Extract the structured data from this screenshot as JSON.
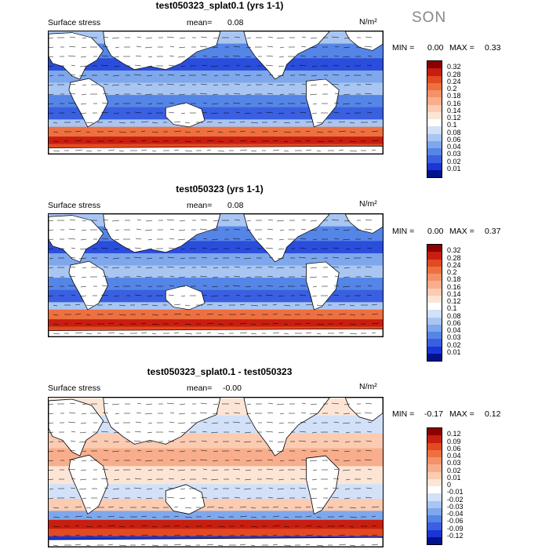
{
  "season": "SON",
  "panels": [
    {
      "title": "test050323_splat0.1 (yrs 1-1)",
      "field": "Surface stress",
      "mean_label": "mean=",
      "mean_value": "0.08",
      "units": "N/m²",
      "min_label": "MIN =",
      "min_value": "0.00",
      "max_label": "MAX =",
      "max_value": "0.33",
      "colorbar": {
        "levels": [
          "0.32",
          "0.28",
          "0.24",
          "0.2",
          "0.18",
          "0.16",
          "0.14",
          "0.12",
          "0.1",
          "0.08",
          "0.06",
          "0.04",
          "0.03",
          "0.02",
          "0.01"
        ],
        "colors": [
          "#8b0000",
          "#c81e10",
          "#e24a22",
          "#ee7040",
          "#f49168",
          "#f8ae8c",
          "#fbcbb2",
          "#fde5d6",
          "#ffffff",
          "#d2e1f8",
          "#a9c6f2",
          "#7ea7ec",
          "#5585e6",
          "#3a5fe0",
          "#1a36d6",
          "#00128c"
        ]
      }
    },
    {
      "title": "test050323 (yrs 1-1)",
      "field": "Surface stress",
      "mean_label": "mean=",
      "mean_value": "0.08",
      "units": "N/m²",
      "min_label": "MIN =",
      "min_value": "0.00",
      "max_label": "MAX =",
      "max_value": "0.37",
      "colorbar": {
        "levels": [
          "0.32",
          "0.28",
          "0.24",
          "0.2",
          "0.18",
          "0.16",
          "0.14",
          "0.12",
          "0.1",
          "0.08",
          "0.06",
          "0.04",
          "0.03",
          "0.02",
          "0.01"
        ],
        "colors": [
          "#8b0000",
          "#c81e10",
          "#e24a22",
          "#ee7040",
          "#f49168",
          "#f8ae8c",
          "#fbcbb2",
          "#fde5d6",
          "#ffffff",
          "#d2e1f8",
          "#a9c6f2",
          "#7ea7ec",
          "#5585e6",
          "#3a5fe0",
          "#1a36d6",
          "#00128c"
        ]
      }
    },
    {
      "title": "test050323_splat0.1 - test050323",
      "field": "Surface stress",
      "mean_label": "mean=",
      "mean_value": "-0.00",
      "units": "N/m²",
      "min_label": "MIN =",
      "min_value": "-0.17",
      "max_label": "MAX =",
      "max_value": "0.12",
      "colorbar": {
        "levels": [
          "0.12",
          "0.09",
          "0.06",
          "0.04",
          "0.03",
          "0.02",
          "0.01",
          "0",
          "-0.01",
          "-0.02",
          "-0.03",
          "-0.04",
          "-0.06",
          "-0.09",
          "-0.12"
        ],
        "colors": [
          "#8b0000",
          "#c81e10",
          "#e24a22",
          "#ee7040",
          "#f49168",
          "#f8ae8c",
          "#fbcbb2",
          "#fde5d6",
          "#ffffff",
          "#d2e1f8",
          "#a9c6f2",
          "#7ea7ec",
          "#5585e6",
          "#3a5fe0",
          "#1a36d6",
          "#00128c"
        ]
      }
    }
  ]
}
